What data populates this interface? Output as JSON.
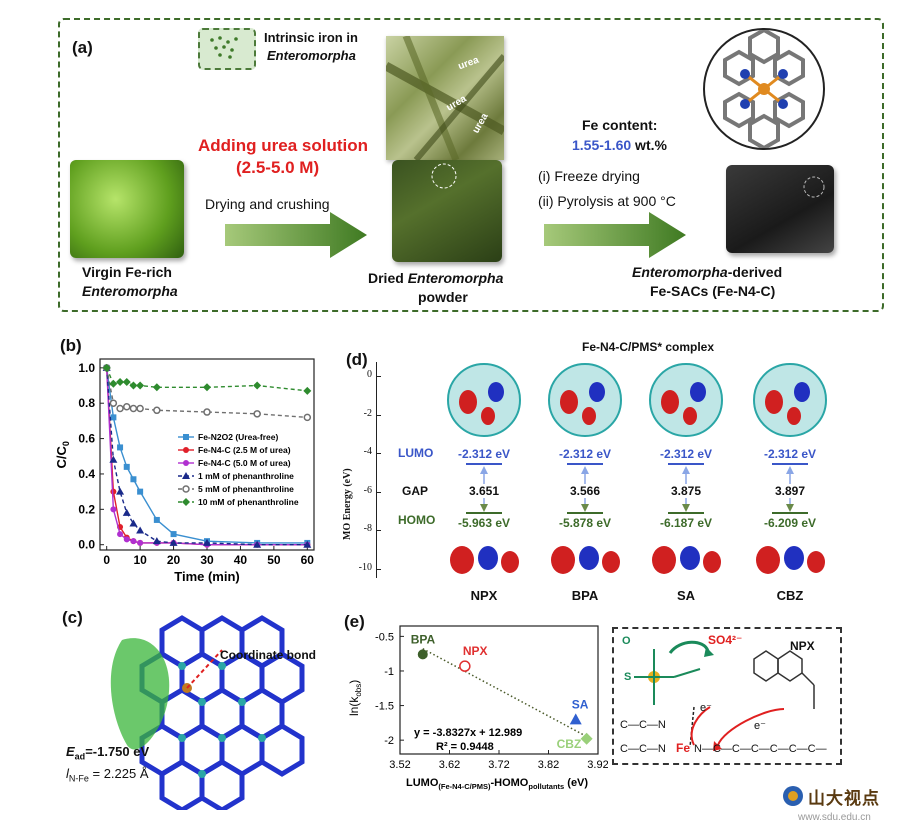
{
  "panel_a": {
    "label": "(a)",
    "inset_title_1": "Intrinsic iron in",
    "inset_title_2": "Enteromorpha",
    "urea_labels": [
      "urea",
      "urea",
      "urea"
    ],
    "adding_1": "Adding urea solution",
    "adding_2": "(2.5-5.0 M)",
    "step1": "Drying and crushing",
    "step2a": "(i) Freeze drying",
    "step2b": "(ii) Pyrolysis at 900 °C",
    "fe_content_title": "Fe content:",
    "fe_content_value": "1.55-1.60",
    "fe_content_unit": " wt.%",
    "virgin_1": "Virgin Fe-rich",
    "virgin_2": "Enteromorpha",
    "dried_1a": "Dried ",
    "dried_1b": "Enteromorpha",
    "dried_2": "powder",
    "derived_1a": "Enteromorpha",
    "derived_1b": "-derived",
    "derived_2": "Fe-SACs (Fe-N4-C)"
  },
  "chart_data": [
    {
      "panel": "(b)",
      "type": "line",
      "xlabel": "Time (min)",
      "ylabel": "C/C0",
      "xlim": [
        -2,
        62
      ],
      "ylim": [
        -0.03,
        1.05
      ],
      "xticks": [
        0,
        10,
        20,
        30,
        40,
        50,
        60
      ],
      "yticks": [
        0.0,
        0.2,
        0.4,
        0.6,
        0.8,
        1.0
      ],
      "series": [
        {
          "name": "Fe-N2O2 (Urea-free)",
          "color": "#3a8fd0",
          "marker": "square",
          "dash": "",
          "x": [
            0,
            2,
            4,
            6,
            8,
            10,
            15,
            20,
            30,
            45,
            60
          ],
          "y": [
            1.0,
            0.72,
            0.55,
            0.44,
            0.37,
            0.3,
            0.14,
            0.06,
            0.02,
            0.01,
            0.01
          ]
        },
        {
          "name": "Fe-N4-C (2.5 M of urea)",
          "color": "#e0202a",
          "marker": "circle",
          "dash": "",
          "x": [
            0,
            2,
            4,
            6,
            8,
            10,
            15,
            20,
            30,
            45,
            60
          ],
          "y": [
            1.0,
            0.3,
            0.1,
            0.04,
            0.02,
            0.01,
            0.01,
            0.01,
            0.0,
            0.0,
            0.0
          ]
        },
        {
          "name": "Fe-N4-C (5.0 M of urea)",
          "color": "#b030d0",
          "marker": "circle",
          "dash": "",
          "x": [
            0,
            2,
            4,
            6,
            8,
            10,
            15,
            20,
            30,
            45,
            60
          ],
          "y": [
            1.0,
            0.2,
            0.06,
            0.03,
            0.02,
            0.01,
            0.01,
            0.01,
            0.0,
            0.0,
            0.0
          ]
        },
        {
          "name": "1 mM of phenanthroline",
          "color": "#1a2a8a",
          "marker": "triangle",
          "dash": "4,3",
          "x": [
            0,
            2,
            4,
            6,
            8,
            10,
            15,
            20,
            30,
            45,
            60
          ],
          "y": [
            1.0,
            0.48,
            0.3,
            0.18,
            0.12,
            0.08,
            0.02,
            0.01,
            0.01,
            0.0,
            0.0
          ]
        },
        {
          "name": "5 mM of phenanthroline",
          "color": "#6f6f6f",
          "marker": "open-circle",
          "dash": "4,3",
          "x": [
            0,
            2,
            4,
            6,
            8,
            10,
            15,
            30,
            45,
            60
          ],
          "y": [
            1.0,
            0.8,
            0.77,
            0.78,
            0.77,
            0.77,
            0.76,
            0.75,
            0.74,
            0.72
          ]
        },
        {
          "name": "10 mM of phenanthroline",
          "color": "#2e8b2e",
          "marker": "diamond",
          "dash": "4,3",
          "x": [
            0,
            2,
            4,
            6,
            8,
            10,
            15,
            30,
            45,
            60
          ],
          "y": [
            1.0,
            0.91,
            0.92,
            0.92,
            0.9,
            0.9,
            0.89,
            0.89,
            0.9,
            0.87
          ]
        }
      ]
    },
    {
      "panel": "(e)",
      "type": "scatter",
      "xlabel": "LUMO(Fe-N4-C/PMS)-HOMOpollutants (eV)",
      "ylabel": "ln(kobs)",
      "xlim": [
        3.52,
        3.92
      ],
      "ylim": [
        -2.2,
        -0.35
      ],
      "xticks": [
        3.52,
        3.62,
        3.72,
        3.82,
        3.92
      ],
      "yticks": [
        -0.5,
        -1,
        -1.5,
        -2
      ],
      "points": [
        {
          "name": "BPA",
          "x": 3.566,
          "y": -0.76,
          "color": "#3d5f2a",
          "marker": "filled-circle"
        },
        {
          "name": "NPX",
          "x": 3.651,
          "y": -0.93,
          "color": "#e03030",
          "marker": "open-circle"
        },
        {
          "name": "SA",
          "x": 3.875,
          "y": -1.7,
          "color": "#3060d0",
          "marker": "triangle"
        },
        {
          "name": "CBZ",
          "x": 3.897,
          "y": -1.98,
          "color": "#9ad07a",
          "marker": "diamond"
        }
      ],
      "fit": {
        "slope": -3.8327,
        "intercept": 12.989
      },
      "equation": "y = -3.8327x + 12.989",
      "r2": "R² = 0.9448"
    }
  ],
  "panel_c": {
    "label": "(c)",
    "coordinate_bond": "Coordinate bond",
    "ead_sym": "E",
    "ead_sub": "ad",
    "ead_val": "=-1.750 eV",
    "l_sym": "l",
    "l_sub": "N-Fe",
    "l_val": " = 2.225 Å"
  },
  "panel_d": {
    "label": "(d)",
    "title": "Fe-N4-C/PMS* complex",
    "ylabel": "MO Energy (eV)",
    "yticks": [
      "0",
      "-2",
      "-4",
      "-6",
      "-8",
      "-10"
    ],
    "lumo_label": "LUMO",
    "gap_label": "GAP",
    "homo_label": "HOMO",
    "columns": [
      {
        "name": "NPX",
        "lumo": "-2.312 eV",
        "gap": "3.651",
        "homo": "-5.963 eV"
      },
      {
        "name": "BPA",
        "lumo": "-2.312 eV",
        "gap": "3.566",
        "homo": "-5.878 eV"
      },
      {
        "name": "SA",
        "lumo": "-2.312 eV",
        "gap": "3.875",
        "homo": "-6.187 eV"
      },
      {
        "name": "CBZ",
        "lumo": "-2.312 eV",
        "gap": "3.897",
        "homo": "-6.209 eV"
      }
    ]
  },
  "panel_e_scheme": {
    "so4": "SO4²⁻",
    "npx": "NPX",
    "e_minus_1": "e⁻",
    "e_minus_2": "e⁻",
    "fe": "Fe",
    "chain_top": "C—C—N",
    "chain_bottom": "C—C—N",
    "chain_right": "N—C—C—C—C—C—C—"
  },
  "watermark": {
    "text": "山大视点",
    "url": "www.sdu.edu.cn"
  }
}
